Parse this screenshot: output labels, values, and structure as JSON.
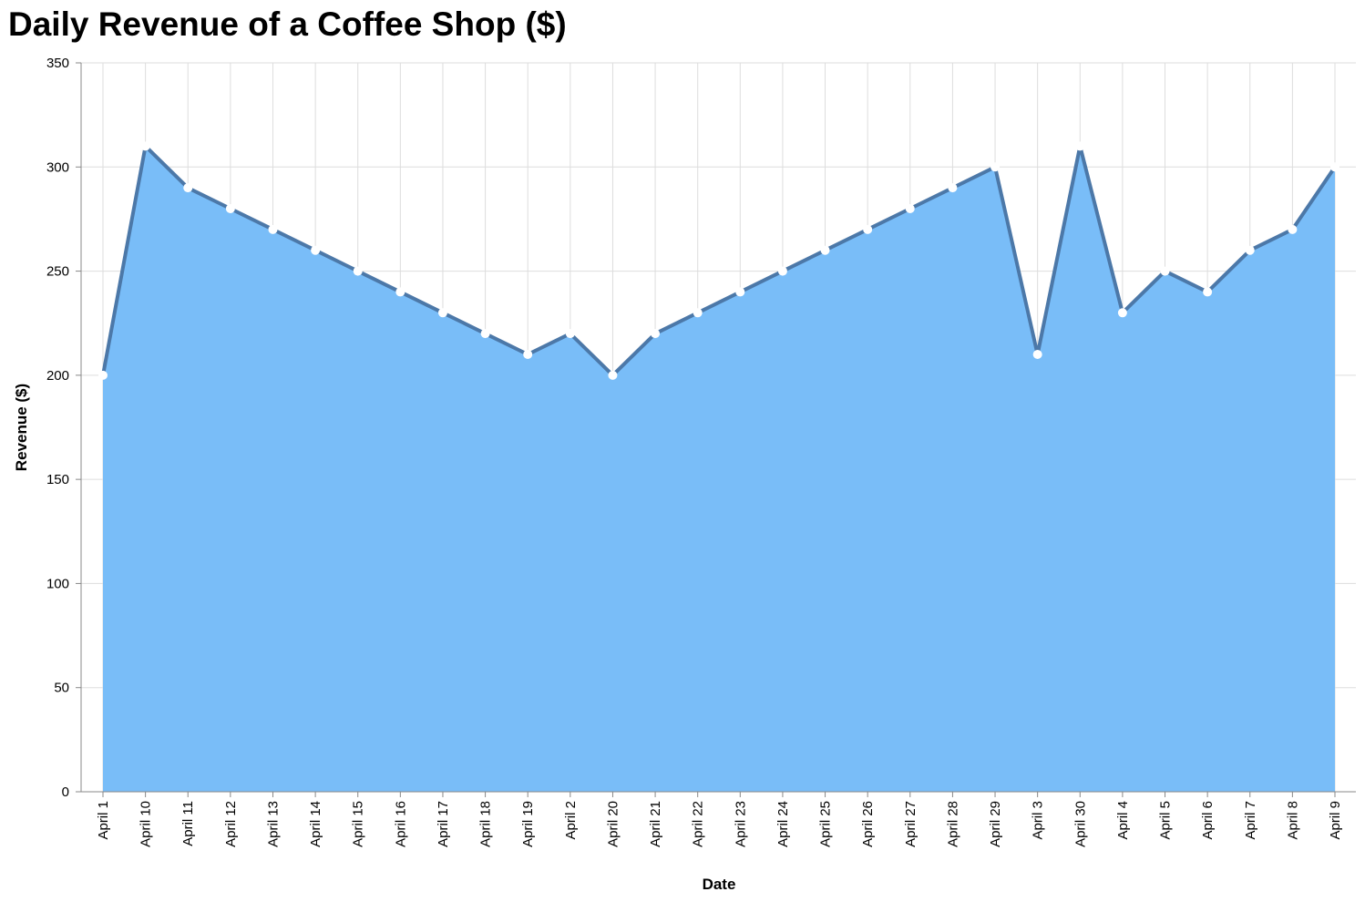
{
  "chart_data": {
    "type": "area",
    "title": "Daily Revenue of a Coffee Shop ($)",
    "xlabel": "Date",
    "ylabel": "Revenue ($)",
    "ylim": [
      0,
      350
    ],
    "yticks": [
      0,
      50,
      100,
      150,
      200,
      250,
      300,
      350
    ],
    "grid": true,
    "categories": [
      "April 1",
      "April 10",
      "April 11",
      "April 12",
      "April 13",
      "April 14",
      "April 15",
      "April 16",
      "April 17",
      "April 18",
      "April 19",
      "April 2",
      "April 20",
      "April 21",
      "April 22",
      "April 23",
      "April 24",
      "April 25",
      "April 26",
      "April 27",
      "April 28",
      "April 29",
      "April 3",
      "April 30",
      "April 4",
      "April 5",
      "April 6",
      "April 7",
      "April 8",
      "April 9"
    ],
    "values": [
      200,
      310,
      290,
      280,
      270,
      260,
      250,
      240,
      230,
      220,
      210,
      220,
      200,
      220,
      230,
      240,
      250,
      260,
      270,
      280,
      290,
      300,
      210,
      310,
      230,
      250,
      240,
      260,
      270,
      300
    ],
    "colors": {
      "area_fill": "#79bdf8",
      "line": "#4c78a8",
      "point": "#ffffff",
      "grid": "#dddddd",
      "axis": "#888888"
    }
  }
}
